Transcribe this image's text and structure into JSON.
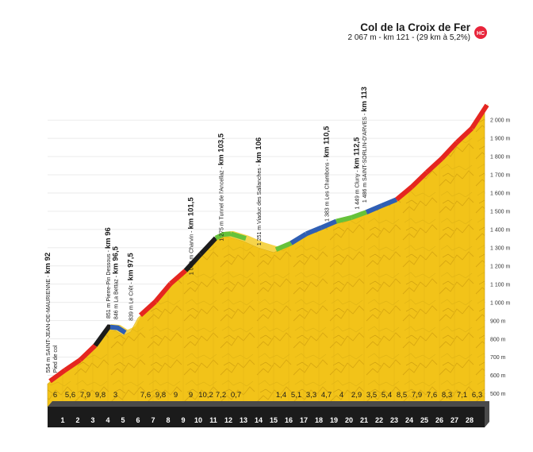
{
  "chart_data": {
    "type": "area",
    "title": "Col de la Croix de Fer",
    "subtitle": "2 067 m - km 121 - (29 km à 5,2%)",
    "badge": "HC",
    "colors": {
      "fill": "#f2c319",
      "base": "#1b1b1b",
      "km_text": "#ffffff",
      "grade_red": "#e52620",
      "grade_black": "#1c1c1c",
      "grade_blue": "#2f5fb4",
      "grade_green": "#66c23a",
      "badge": "#e8243a"
    },
    "x_ticks": [
      "1",
      "2",
      "3",
      "4",
      "5",
      "6",
      "7",
      "8",
      "9",
      "10",
      "11",
      "12",
      "13",
      "14",
      "15",
      "16",
      "17",
      "18",
      "19",
      "20",
      "21",
      "22",
      "23",
      "24",
      "25",
      "26",
      "27",
      "28"
    ],
    "y_ticks": [
      "500 m",
      "600 m",
      "700 m",
      "800 m",
      "900 m",
      "1 000 m",
      "1 100 m",
      "1 200 m",
      "1 300 m",
      "1 400 m",
      "1 500 m",
      "1 600 m",
      "1 700 m",
      "1 800 m",
      "1 900 m",
      "2 000 m"
    ],
    "ylim": [
      455,
      2080
    ],
    "xlim": [
      0,
      29
    ],
    "elevation": {
      "x": [
        0,
        0.5,
        1,
        2,
        3,
        3.9,
        4.5,
        5,
        5.5,
        6,
        7,
        8,
        9,
        10,
        11,
        11.5,
        12,
        13,
        14,
        15,
        16,
        17,
        18,
        19,
        20,
        21,
        22,
        23,
        24,
        25,
        26,
        27,
        28,
        29
      ],
      "y": [
        554,
        584,
        614,
        670,
        749,
        851,
        846,
        820,
        839,
        915,
        990,
        1088,
        1160,
        1250,
        1338,
        1358,
        1361,
        1336,
        1300,
        1275,
        1310,
        1361,
        1395,
        1430,
        1450,
        1480,
        1515,
        1549,
        1618,
        1698,
        1774,
        1862,
        1940,
        2067
      ]
    },
    "km_grades": [
      "6",
      "5,6",
      "7,9",
      "9,8",
      "3",
      "",
      "7,6",
      "9,8",
      "9",
      "9",
      "10,2",
      "7,2",
      "0,7",
      "",
      "",
      "1,4",
      "5,1",
      "3,3",
      "4,7",
      "4",
      "2,9",
      "3,5",
      "5,4",
      "8,5",
      "7,9",
      "7,6",
      "8,3",
      "7,1",
      "6,3"
    ],
    "grade_colors": [
      "red",
      "red",
      "red",
      "black",
      "blue",
      "",
      "red",
      "red",
      "red",
      "black",
      "black",
      "green",
      "green",
      "",
      "",
      "green",
      "blue",
      "blue",
      "blue",
      "green",
      "green",
      "blue",
      "blue",
      "red",
      "red",
      "red",
      "red",
      "red",
      "red"
    ],
    "waypoints": [
      {
        "label": "554 m SAINT-JEAN-DE-MAURIENNE - ",
        "km_label": "km 92",
        "sub": "Pied de col"
      },
      {
        "label": "851 m Pierre-Pin Dessous - ",
        "km_label": "km 96"
      },
      {
        "label": "846 m La Bettaz - ",
        "km_label": "km 96,5"
      },
      {
        "label": "839 m Le Crêt - ",
        "km_label": "km 97,5"
      },
      {
        "label": "1 090 m Charvin - ",
        "km_label": "km 101,5"
      },
      {
        "label": "1 275 m Tunnel de l'Ancellaz - ",
        "km_label": "km 103,5"
      },
      {
        "label": "1 251 m Viaduc des Sallanches - ",
        "km_label": "km 106"
      },
      {
        "label": "1 383 m Les Chambons - ",
        "km_label": "km 110,5"
      },
      {
        "label": "1 449 m Cluny - ",
        "km_label": "km 112,5"
      },
      {
        "label": "1 486 m SAINT-SORLIN-D'ARVES - ",
        "km_label": "km 113"
      }
    ]
  }
}
